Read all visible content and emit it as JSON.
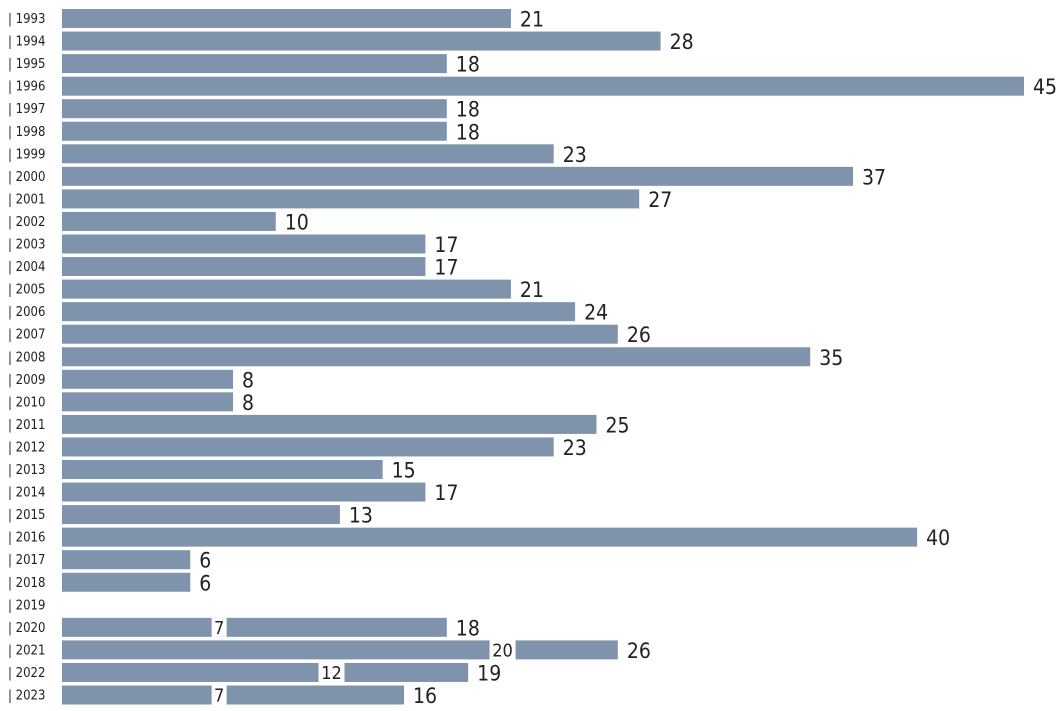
{
  "chart_data": {
    "type": "bar",
    "orientation": "horizontal",
    "categories": [
      "1993",
      "1994",
      "1995",
      "1996",
      "1997",
      "1998",
      "1999",
      "2000",
      "2001",
      "2002",
      "2003",
      "2004",
      "2005",
      "2006",
      "2007",
      "2008",
      "2009",
      "2010",
      "2011",
      "2012",
      "2013",
      "2014",
      "2015",
      "2016",
      "2017",
      "2018",
      "2019",
      "2020",
      "2021",
      "2022",
      "2023"
    ],
    "series": [
      {
        "values": [
          21,
          28,
          18,
          45,
          18,
          18,
          23,
          37,
          27,
          10,
          17,
          17,
          21,
          24,
          26,
          35,
          8,
          8,
          25,
          23,
          15,
          17,
          13,
          40,
          6,
          6,
          null,
          18,
          26,
          19,
          16
        ]
      },
      {
        "values": [
          null,
          null,
          null,
          null,
          null,
          null,
          null,
          null,
          null,
          null,
          null,
          null,
          null,
          null,
          null,
          null,
          null,
          null,
          null,
          null,
          null,
          null,
          null,
          null,
          null,
          null,
          null,
          7,
          20,
          12,
          7
        ]
      }
    ],
    "tick_prefix": "|",
    "title": "",
    "xlabel": "",
    "ylabel": "",
    "xlim": [
      0,
      45
    ],
    "grid": false,
    "legend": "none",
    "colors": {
      "bar": "#8093ad",
      "marker_background": "#ffffff",
      "text": "#222222"
    }
  }
}
